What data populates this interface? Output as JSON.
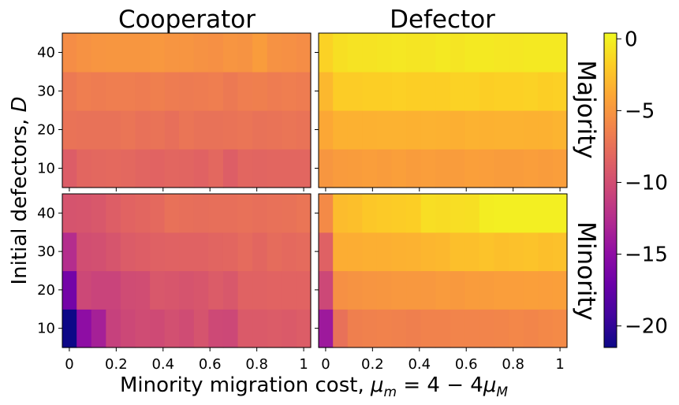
{
  "chart_data": {
    "type": "heatmap",
    "panel_titles": [
      "Cooperator",
      "Defector"
    ],
    "row_labels": [
      "Majority",
      "Minority"
    ],
    "ylabel": "Initial defectors, $D$",
    "xlabel_text": "Minority migration cost, ",
    "xlabel_math": "μ",
    "xlabel_sub_m": "m",
    "xlabel_eq": " = 4 − 4",
    "xlabel_sub_M": "M",
    "x_ticks": [
      "0",
      "0.2",
      "0.4",
      "0.6",
      "0.8",
      "1"
    ],
    "x_tick_values": [
      0,
      0.2,
      0.4,
      0.6,
      0.8,
      1
    ],
    "y_ticks": [
      "10",
      "20",
      "30",
      "40"
    ],
    "y_tick_values": [
      10,
      20,
      30,
      40
    ],
    "xlim": [
      -0.03,
      1.03
    ],
    "ylim": [
      5,
      45
    ],
    "x": [
      0,
      0.0625,
      0.125,
      0.1875,
      0.25,
      0.3125,
      0.375,
      0.4375,
      0.5,
      0.5625,
      0.625,
      0.6875,
      0.75,
      0.8125,
      0.875,
      0.9375,
      1.0
    ],
    "y": [
      10,
      20,
      30,
      40
    ],
    "colorbar": {
      "colormap": "plasma",
      "vmin": -21.5,
      "vmax": 0.4,
      "ticks": [
        "0",
        "−5",
        "−10",
        "−15",
        "−20"
      ],
      "tick_values": [
        0,
        -5,
        -10,
        -15,
        -20
      ]
    },
    "panels": [
      {
        "name": "Cooperator-Majority",
        "values": [
          [
            -8.9,
            -8.2,
            -8.1,
            -8.0,
            -8.1,
            -8.3,
            -8.4,
            -8.2,
            -8.3,
            -8.5,
            -8.1,
            -8.8,
            -8.2,
            -8.3,
            -8.2,
            -8.2,
            -8.2
          ],
          [
            -7.3,
            -7.4,
            -7.4,
            -7.4,
            -7.2,
            -7.5,
            -7.3,
            -7.6,
            -7.2,
            -7.4,
            -7.4,
            -7.3,
            -7.2,
            -7.4,
            -7.3,
            -7.2,
            -7.3
          ],
          [
            -6.9,
            -6.6,
            -6.7,
            -6.6,
            -6.6,
            -6.7,
            -6.5,
            -6.7,
            -6.8,
            -6.7,
            -6.6,
            -6.9,
            -6.6,
            -6.5,
            -6.7,
            -6.6,
            -6.7
          ],
          [
            -5.6,
            -5.3,
            -5.1,
            -5.0,
            -5.0,
            -5.0,
            -4.9,
            -5.1,
            -5.1,
            -5.3,
            -5.4,
            -5.1,
            -5.2,
            -4.6,
            -5.3,
            -5.4,
            -5.6
          ]
        ]
      },
      {
        "name": "Defector-Majority",
        "values": [
          [
            -5.0,
            -4.7,
            -4.6,
            -4.5,
            -4.6,
            -4.4,
            -4.6,
            -4.5,
            -4.6,
            -4.6,
            -4.4,
            -4.5,
            -4.6,
            -4.6,
            -4.5,
            -4.6,
            -4.5
          ],
          [
            -3.9,
            -3.4,
            -3.4,
            -3.4,
            -3.3,
            -3.3,
            -3.4,
            -3.3,
            -3.4,
            -3.5,
            -3.3,
            -3.4,
            -3.3,
            -3.3,
            -3.4,
            -3.4,
            -3.2
          ],
          [
            -3.0,
            -1.9,
            -1.9,
            -1.8,
            -1.8,
            -1.7,
            -1.8,
            -1.8,
            -1.8,
            -1.6,
            -1.6,
            -1.8,
            -1.7,
            -1.7,
            -1.6,
            -1.8,
            -1.7
          ],
          [
            -1.6,
            -0.9,
            -0.7,
            -0.7,
            -0.6,
            -0.5,
            -0.6,
            -0.6,
            -0.4,
            -0.6,
            -0.4,
            -0.4,
            -0.5,
            -0.5,
            -0.4,
            -0.4,
            -0.4
          ]
        ]
      },
      {
        "name": "Cooperator-Minority",
        "values": [
          [
            -21.5,
            -15.0,
            -13.5,
            -11.0,
            -10.5,
            -10.2,
            -10.3,
            -9.9,
            -10.2,
            -9.6,
            -10.4,
            -10.5,
            -9.1,
            -9.1,
            -9.0,
            -9.1,
            -8.9
          ],
          [
            -16.5,
            -10.5,
            -10.8,
            -10.8,
            -10.2,
            -10.1,
            -9.3,
            -9.4,
            -9.6,
            -9.4,
            -9.0,
            -9.3,
            -8.5,
            -8.5,
            -8.4,
            -8.4,
            -8.4
          ],
          [
            -12.5,
            -10.0,
            -9.9,
            -9.5,
            -9.0,
            -8.8,
            -8.6,
            -8.5,
            -8.5,
            -8.5,
            -8.3,
            -8.2,
            -7.9,
            -8.2,
            -7.8,
            -8.0,
            -7.9
          ],
          [
            -9.6,
            -9.5,
            -9.3,
            -8.8,
            -8.4,
            -8.2,
            -8.0,
            -7.5,
            -7.6,
            -7.7,
            -7.6,
            -7.6,
            -7.5,
            -7.6,
            -7.5,
            -7.4,
            -7.2
          ]
        ]
      },
      {
        "name": "Defector-Minority",
        "values": [
          [
            -14.0,
            -7.5,
            -6.5,
            -6.4,
            -6.3,
            -6.4,
            -6.5,
            -6.3,
            -6.3,
            -6.2,
            -6.2,
            -6.2,
            -6.1,
            -6.0,
            -6.1,
            -5.9,
            -5.8
          ],
          [
            -10.5,
            -5.4,
            -5.2,
            -5.1,
            -5.0,
            -4.9,
            -4.9,
            -4.9,
            -4.7,
            -4.8,
            -4.6,
            -4.6,
            -4.5,
            -4.5,
            -4.4,
            -4.5,
            -4.4
          ],
          [
            -8.6,
            -3.6,
            -3.6,
            -3.5,
            -3.5,
            -3.4,
            -3.3,
            -3.1,
            -3.0,
            -2.6,
            -2.6,
            -2.4,
            -2.6,
            -2.5,
            -2.4,
            -2.6,
            -2.5
          ],
          [
            -5.8,
            -2.8,
            -2.6,
            -2.2,
            -2.0,
            -1.9,
            -1.8,
            -1.0,
            -1.1,
            -1.0,
            -0.9,
            -0.2,
            -0.1,
            -0.1,
            -0.1,
            -0.1,
            -0.1
          ]
        ]
      }
    ]
  }
}
